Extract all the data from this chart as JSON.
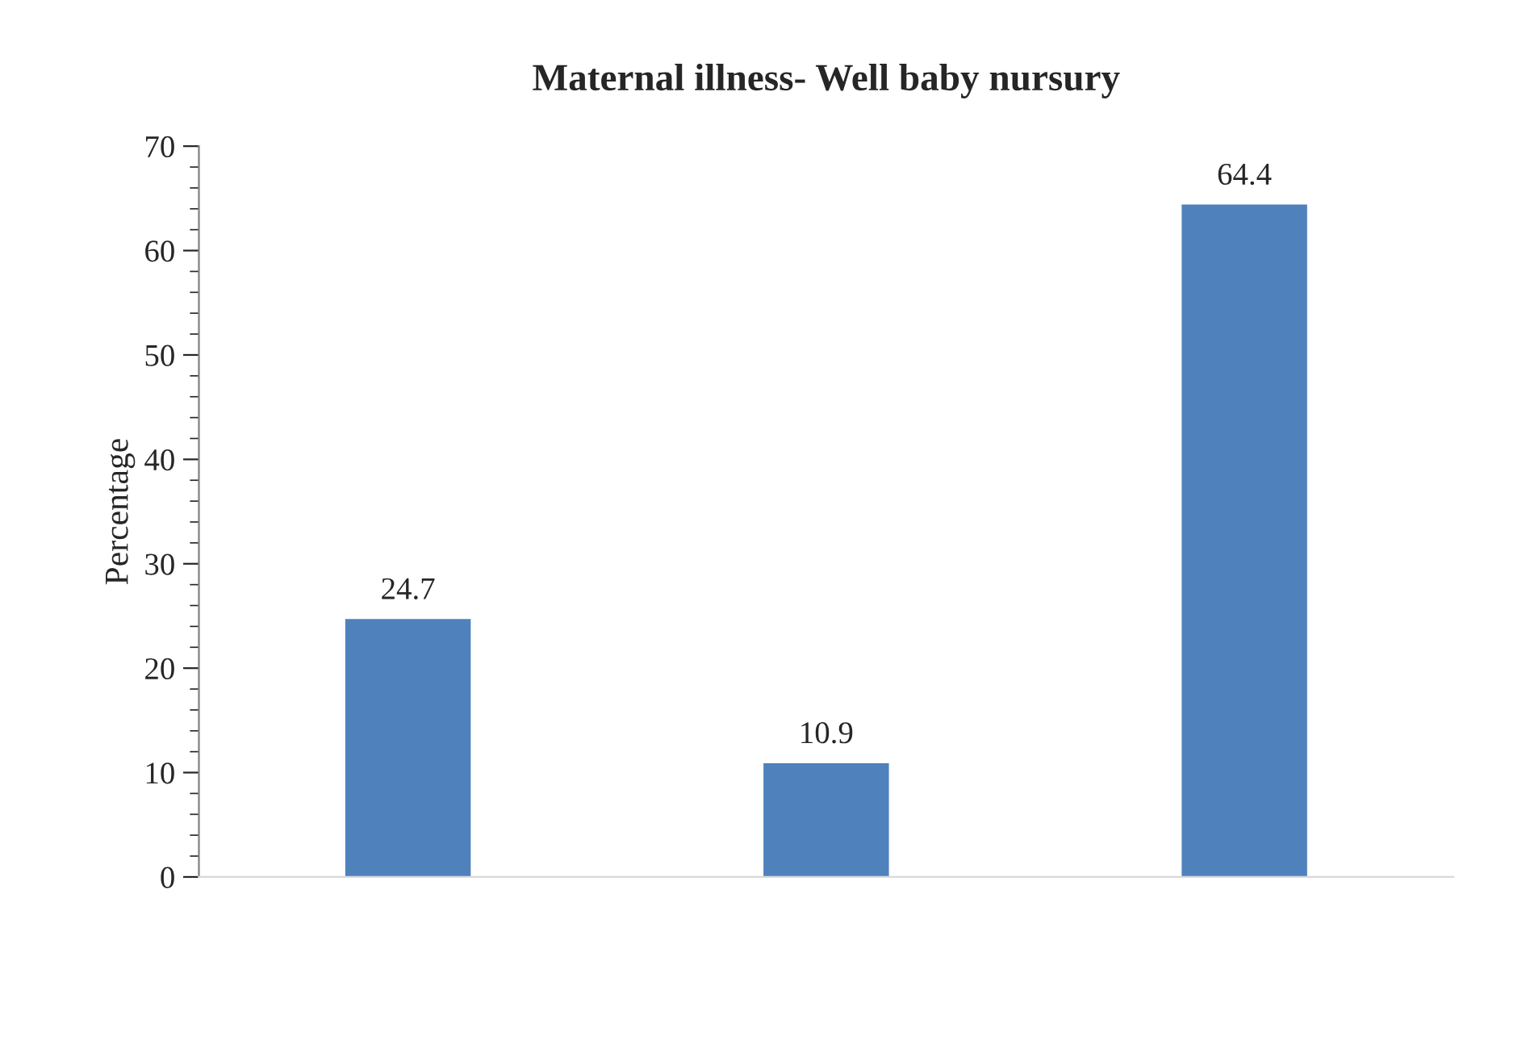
{
  "chart_data": {
    "type": "bar",
    "title": "Maternal illness- Well baby nursury",
    "ylabel": "Percentage",
    "categories": [
      null,
      null,
      null
    ],
    "values": [
      24.7,
      10.9,
      64.4
    ],
    "color": "#4f81bd",
    "ylim": [
      0,
      70
    ],
    "yticks": [
      0,
      10,
      20,
      30,
      40,
      50,
      60,
      70
    ],
    "data_labels": true,
    "grid": false,
    "legend": false
  }
}
